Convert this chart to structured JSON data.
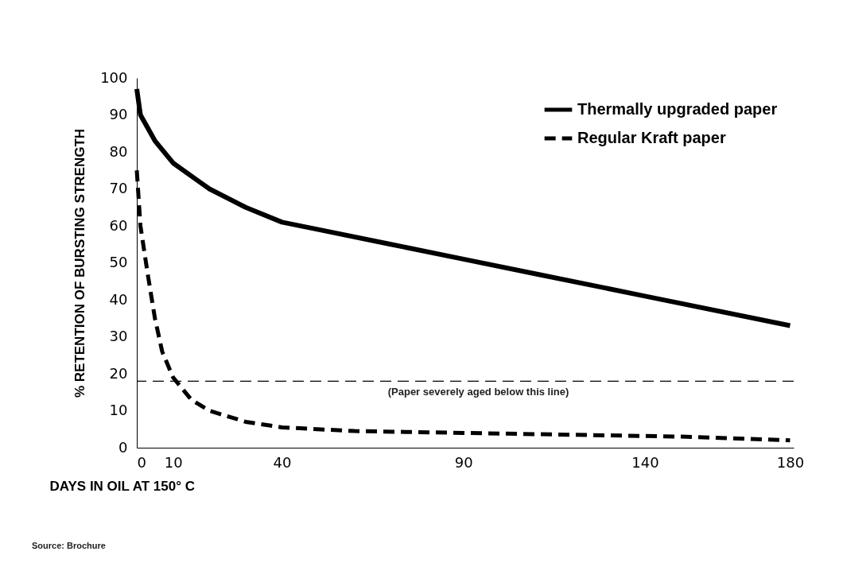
{
  "chart_data": {
    "type": "line",
    "xlabel": "DAYS IN OIL AT 150° C",
    "ylabel": "% RETENTION OF BURSTING STRENGTH",
    "xlim": [
      0,
      181
    ],
    "xticks": [
      0,
      10,
      40,
      90,
      140,
      180
    ],
    "ylim": [
      0,
      100
    ],
    "yticks": [
      0,
      10,
      20,
      30,
      40,
      50,
      60,
      70,
      80,
      90,
      100
    ],
    "grid": false,
    "legend": "top right",
    "series": [
      {
        "name": "Thermally upgraded paper",
        "color": "#000000",
        "line_style": "solid",
        "x": [
          0,
          1,
          5,
          10,
          20,
          30,
          40,
          50,
          70,
          90,
          110,
          140,
          180
        ],
        "values": [
          97,
          90,
          83,
          77,
          70,
          65,
          61,
          59,
          55,
          51,
          47,
          41,
          33
        ]
      },
      {
        "name": "Regular Kraft  paper",
        "color": "#000000",
        "line_style": "dashed",
        "x": [
          0,
          1,
          3,
          5,
          7,
          10,
          15,
          20,
          30,
          40,
          60,
          90,
          120,
          150,
          180
        ],
        "values": [
          75,
          60,
          47,
          35,
          26,
          19,
          13,
          10,
          7,
          5.5,
          4.5,
          4,
          3.5,
          3,
          2
        ]
      }
    ],
    "ref_lines": [
      {
        "axis": "y",
        "value": 18,
        "label": "(Paper severely aged below this line)",
        "line_style": "dashed",
        "color": "#000000"
      }
    ],
    "annotations": [
      "Source: Brochure"
    ]
  }
}
